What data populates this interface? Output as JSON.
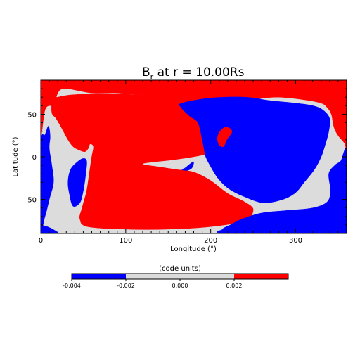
{
  "chart_data": {
    "type": "heatmap",
    "title": "B",
    "title_sub": "r",
    "title_rest": " at r = 10.00Rs",
    "xlabel": "Longitude (°)",
    "ylabel": "Latitude (°)",
    "xlim": [
      0,
      360
    ],
    "ylim": [
      -90,
      90
    ],
    "x_ticks": [
      0,
      100,
      200,
      300
    ],
    "y_ticks": [
      -50,
      0,
      50
    ],
    "colorbar": {
      "title": "(code units)",
      "range": [
        -0.004,
        0.004
      ],
      "ticks": [
        "-0.004",
        "-0.002",
        "0.000",
        "0.002"
      ],
      "tick_values": [
        -0.004,
        -0.002,
        0.0,
        0.002
      ],
      "levels": [
        {
          "from": -0.004,
          "to": -0.002,
          "color": "#0000ff"
        },
        {
          "from": -0.002,
          "to": 0.002,
          "color": "#dcdcdc"
        },
        {
          "from": 0.002,
          "to": 0.004,
          "color": "#ff0000"
        }
      ]
    },
    "regions": [
      {
        "level": "positive",
        "color": "#ff0000",
        "points": [
          [
            0,
            90
          ],
          [
            360,
            90
          ],
          [
            360,
            5
          ],
          [
            358,
            15
          ],
          [
            350,
            25
          ],
          [
            345,
            35
          ],
          [
            342,
            50
          ],
          [
            337,
            58
          ],
          [
            330,
            63
          ],
          [
            310,
            67
          ],
          [
            280,
            70
          ],
          [
            255,
            68
          ],
          [
            237,
            65
          ],
          [
            210,
            65
          ],
          [
            170,
            64
          ],
          [
            150,
            67
          ],
          [
            120,
            72
          ],
          [
            90,
            75
          ],
          [
            60,
            75
          ],
          [
            30,
            80
          ],
          [
            20,
            75
          ],
          [
            15,
            55
          ],
          [
            12,
            60
          ],
          [
            5,
            55
          ],
          [
            0,
            25
          ]
        ]
      },
      {
        "level": "positive",
        "color": "#ff0000",
        "points": [
          [
            20,
            70
          ],
          [
            14,
            68
          ],
          [
            13,
            52
          ],
          [
            18,
            45
          ],
          [
            25,
            33
          ],
          [
            32,
            20
          ],
          [
            38,
            12
          ],
          [
            45,
            8
          ],
          [
            52,
            6
          ],
          [
            56,
            10
          ],
          [
            58,
            15
          ],
          [
            62,
            12
          ],
          [
            60,
            0
          ],
          [
            57,
            -20
          ],
          [
            54,
            -40
          ],
          [
            50,
            -55
          ],
          [
            48,
            -62
          ],
          [
            46,
            -73
          ],
          [
            55,
            -82
          ],
          [
            100,
            -85
          ],
          [
            150,
            -85
          ],
          [
            200,
            -82
          ],
          [
            240,
            -75
          ],
          [
            250,
            -62
          ],
          [
            240,
            -53
          ],
          [
            220,
            -43
          ],
          [
            200,
            -28
          ],
          [
            180,
            -18
          ],
          [
            160,
            -15
          ],
          [
            140,
            -12
          ],
          [
            120,
            -8
          ],
          [
            160,
            -3
          ],
          [
            190,
            2
          ],
          [
            213,
            8
          ],
          [
            202,
            20
          ],
          [
            198,
            35
          ],
          [
            202,
            48
          ],
          [
            205,
            60
          ],
          [
            180,
            65
          ],
          [
            150,
            68
          ],
          [
            120,
            72
          ],
          [
            90,
            74
          ],
          [
            60,
            74
          ],
          [
            40,
            73
          ],
          [
            30,
            72
          ]
        ]
      },
      {
        "level": "negative",
        "color": "#0000ff",
        "points": [
          [
            0,
            16
          ],
          [
            5,
            26
          ],
          [
            9,
            36
          ],
          [
            11,
            24
          ],
          [
            10,
            10
          ],
          [
            13,
            -10
          ],
          [
            15,
            -30
          ],
          [
            10,
            -50
          ],
          [
            5,
            -70
          ],
          [
            0,
            -80
          ]
        ]
      },
      {
        "level": "negative",
        "color": "#0000ff",
        "points": [
          [
            38,
            -58
          ],
          [
            34,
            -45
          ],
          [
            32,
            -30
          ],
          [
            35,
            -15
          ],
          [
            43,
            -6
          ],
          [
            50,
            -2
          ],
          [
            54,
            -5
          ],
          [
            53,
            -20
          ],
          [
            50,
            -40
          ],
          [
            46,
            -54
          ]
        ]
      },
      {
        "level": "negative",
        "color": "#0000ff",
        "points": [
          [
            166,
            -15
          ],
          [
            170,
            -13
          ],
          [
            176,
            -8
          ],
          [
            180,
            -6
          ],
          [
            178,
            -13
          ],
          [
            172,
            -16
          ]
        ]
      },
      {
        "level": "negative",
        "color": "#0000ff",
        "points": [
          [
            166,
            63
          ],
          [
            200,
            69
          ],
          [
            240,
            70
          ],
          [
            270,
            66
          ],
          [
            300,
            63
          ],
          [
            320,
            60
          ],
          [
            332,
            55
          ],
          [
            340,
            45
          ],
          [
            339,
            30
          ],
          [
            335,
            15
          ],
          [
            330,
            0
          ],
          [
            322,
            -15
          ],
          [
            310,
            -30
          ],
          [
            300,
            -42
          ],
          [
            285,
            -50
          ],
          [
            262,
            -54
          ],
          [
            240,
            -47
          ],
          [
            222,
            -38
          ],
          [
            210,
            -27
          ],
          [
            202,
            -15
          ],
          [
            195,
            -2
          ],
          [
            193,
            5
          ],
          [
            190,
            20
          ],
          [
            185,
            40
          ],
          [
            175,
            48
          ],
          [
            165,
            58
          ]
        ]
      },
      {
        "level": "positive",
        "color": "#ff0000",
        "points": [
          [
            211,
            30
          ],
          [
            218,
            35
          ],
          [
            225,
            30
          ],
          [
            219,
            20
          ],
          [
            215,
            12
          ],
          [
            210,
            14
          ],
          [
            208,
            22
          ]
        ]
      },
      {
        "level": "negative",
        "color": "#0000ff",
        "points": [
          [
            223,
            -80
          ],
          [
            237,
            -73
          ],
          [
            260,
            -66
          ],
          [
            290,
            -63
          ],
          [
            320,
            -60
          ],
          [
            337,
            -53
          ],
          [
            341,
            -40
          ],
          [
            339,
            -20
          ],
          [
            346,
            -10
          ],
          [
            353,
            -5
          ],
          [
            360,
            5
          ],
          [
            360,
            -90
          ],
          [
            220,
            -90
          ],
          [
            214,
            -85
          ]
        ]
      },
      {
        "level": "negative",
        "color": "#0000ff",
        "points": [
          [
            233,
            -83
          ],
          [
            300,
            -80
          ],
          [
            360,
            -79
          ],
          [
            360,
            -90
          ],
          [
            228,
            -90
          ]
        ]
      },
      {
        "level": "negative",
        "color": "#0000ff",
        "points": [
          [
            0,
            -81
          ],
          [
            10,
            -83
          ],
          [
            20,
            -90
          ],
          [
            0,
            -90
          ]
        ]
      }
    ]
  }
}
